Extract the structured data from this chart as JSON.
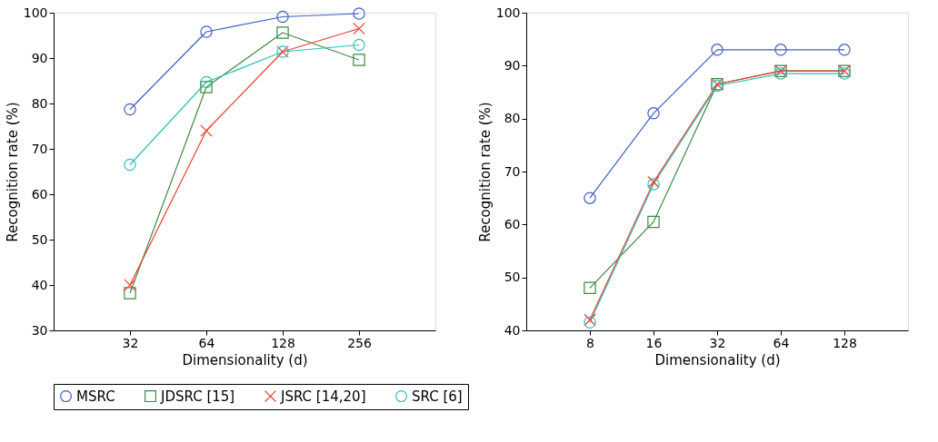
{
  "chart_data": [
    {
      "type": "line",
      "xlabel": "Dimensionality (d)",
      "ylabel": "Recognition rate (%)",
      "log": "x",
      "x": [
        32,
        64,
        128,
        256
      ],
      "xlim": [
        16,
        512
      ],
      "xticks": [
        32,
        64,
        128,
        256
      ],
      "ylim": [
        30,
        100
      ],
      "yticks": [
        30,
        40,
        50,
        60,
        70,
        80,
        90,
        100
      ],
      "grid": false,
      "legend": "bottom",
      "line_style": "solid",
      "series": [
        {
          "name": "MSRC",
          "color": "#3f5fbf",
          "marker": "circle",
          "values": [
            78.7,
            95.8,
            99.1,
            99.8
          ]
        },
        {
          "name": "JDSRC [15]",
          "color": "#3d8a45",
          "marker": "square",
          "values": [
            38.2,
            83.6,
            95.6,
            89.6
          ]
        },
        {
          "name": "JSRC [14,20]",
          "color": "#f03c2d",
          "marker": "cross",
          "values": [
            40,
            74,
            91.4,
            96.5
          ]
        },
        {
          "name": "SRC [6]",
          "color": "#2fbfb5",
          "marker": "circle",
          "values": [
            66.5,
            84.7,
            91.4,
            92.9
          ]
        }
      ]
    },
    {
      "type": "line",
      "xlabel": "Dimensionality (d)",
      "ylabel": "Recognition rate (%)",
      "log": "x",
      "x": [
        8,
        16,
        32,
        64,
        128
      ],
      "xlim": [
        4,
        256
      ],
      "xticks": [
        8,
        16,
        32,
        64,
        128
      ],
      "ylim": [
        40,
        100
      ],
      "yticks": [
        40,
        50,
        60,
        70,
        80,
        90,
        100
      ],
      "grid": false,
      "legend": "bottom",
      "line_style": "solid",
      "series": [
        {
          "name": "MSRC",
          "color": "#3f5fbf",
          "marker": "circle",
          "values": [
            65,
            81,
            93,
            93,
            93
          ]
        },
        {
          "name": "JDSRC [15]",
          "color": "#3d8a45",
          "marker": "square",
          "values": [
            48,
            60.5,
            86.5,
            89,
            89
          ]
        },
        {
          "name": "JSRC [14,20]",
          "color": "#f03c2d",
          "marker": "cross",
          "values": [
            42,
            68,
            86.5,
            89,
            89
          ]
        },
        {
          "name": "SRC [6]",
          "color": "#2fbfb5",
          "marker": "circle",
          "values": [
            41.5,
            67.6,
            86.2,
            88.5,
            88.5
          ]
        }
      ]
    }
  ]
}
